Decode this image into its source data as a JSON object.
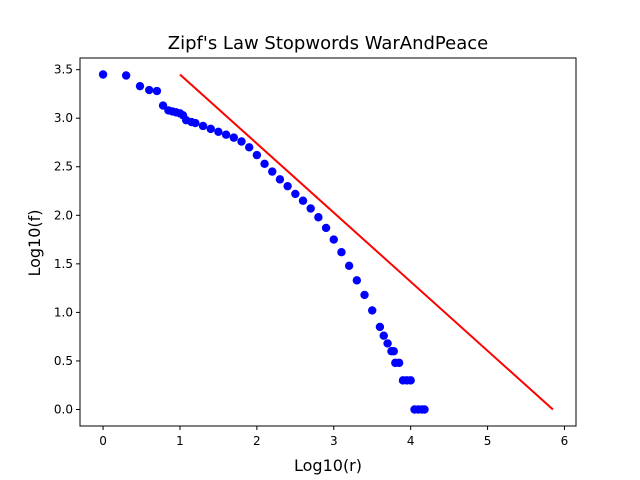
{
  "chart_data": {
    "type": "scatter",
    "title": "Zipf's Law Stopwords WarAndPeace",
    "xlabel": "Log10(r)",
    "ylabel": "Log10(f)",
    "xlim": [
      -0.3,
      6.15
    ],
    "ylim": [
      -0.17,
      3.62
    ],
    "xticks": [
      0,
      1,
      2,
      3,
      4,
      5,
      6
    ],
    "xtick_labels": [
      "0",
      "1",
      "2",
      "3",
      "4",
      "5",
      "6"
    ],
    "yticks": [
      0.0,
      0.5,
      1.0,
      1.5,
      2.0,
      2.5,
      3.0,
      3.5
    ],
    "ytick_labels": [
      "0.0",
      "0.5",
      "1.0",
      "1.5",
      "2.0",
      "2.5",
      "3.0",
      "3.5"
    ],
    "grid": false,
    "series": [
      {
        "kind": "scatter",
        "color": "#0000ff",
        "x": [
          0.0,
          0.3,
          0.48,
          0.6,
          0.7,
          0.78,
          0.85,
          0.9,
          0.95,
          1.0,
          1.04,
          1.08,
          1.15,
          1.2,
          1.3,
          1.4,
          1.5,
          1.6,
          1.7,
          1.8,
          1.9,
          2.0,
          2.1,
          2.2,
          2.3,
          2.4,
          2.5,
          2.6,
          2.7,
          2.8,
          2.9,
          3.0,
          3.1,
          3.2,
          3.3,
          3.4,
          3.5,
          3.6,
          3.65,
          3.7,
          3.75,
          3.78,
          3.8,
          3.85,
          3.9,
          3.95,
          4.0,
          4.05,
          4.1,
          4.15,
          4.18
        ],
        "y": [
          3.45,
          3.44,
          3.33,
          3.29,
          3.28,
          3.13,
          3.08,
          3.07,
          3.06,
          3.05,
          3.03,
          2.98,
          2.96,
          2.95,
          2.92,
          2.89,
          2.86,
          2.83,
          2.8,
          2.76,
          2.7,
          2.62,
          2.53,
          2.45,
          2.37,
          2.3,
          2.22,
          2.15,
          2.07,
          1.98,
          1.87,
          1.75,
          1.62,
          1.48,
          1.33,
          1.18,
          1.02,
          0.85,
          0.76,
          0.68,
          0.6,
          0.6,
          0.48,
          0.48,
          0.3,
          0.3,
          0.3,
          0.0,
          0.0,
          0.0,
          0.0
        ]
      },
      {
        "kind": "line",
        "color": "#ff0000",
        "x": [
          1.0,
          5.85
        ],
        "y": [
          3.45,
          0.0
        ]
      }
    ]
  }
}
